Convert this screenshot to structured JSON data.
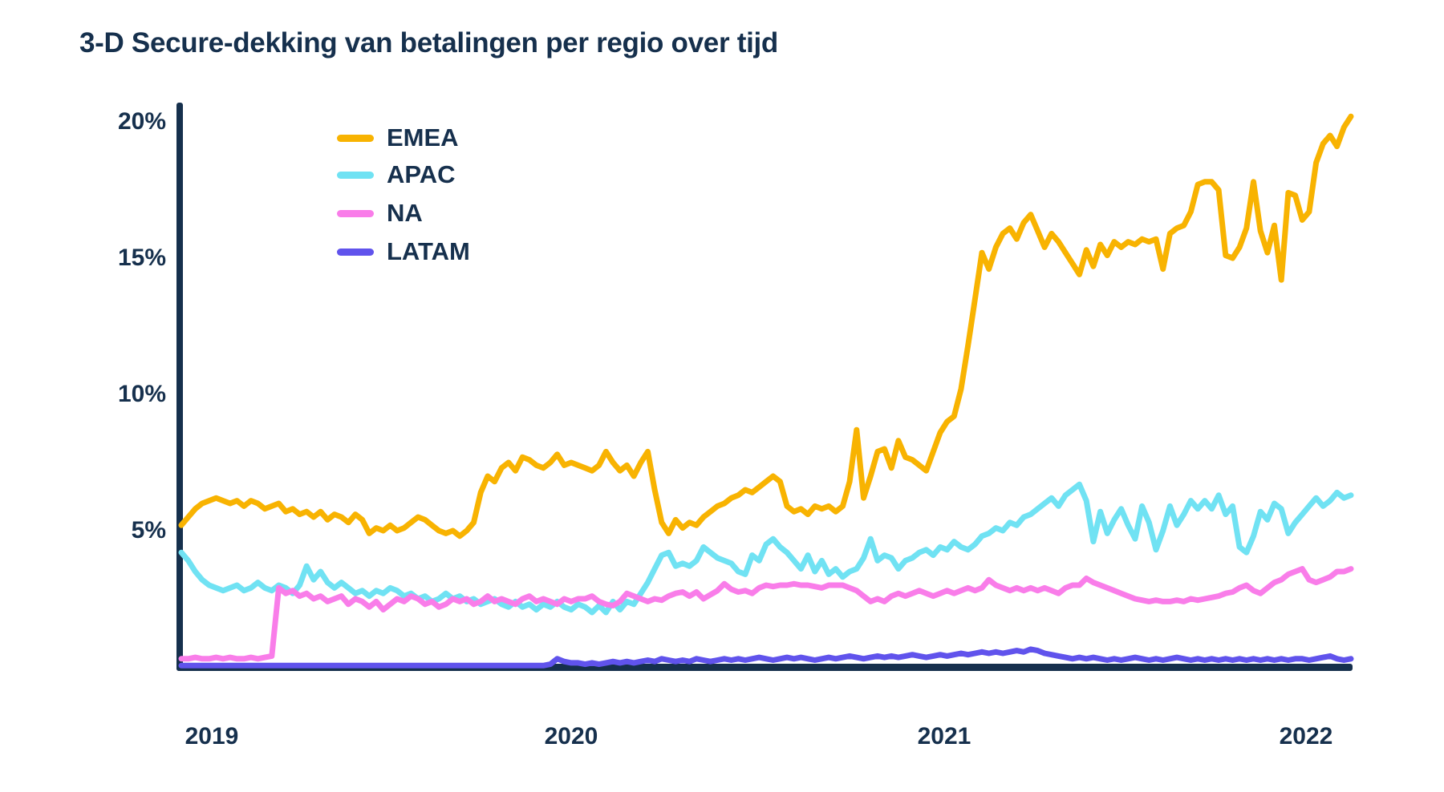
{
  "title": "3-D Secure-dekking van betalingen per regio over tijd",
  "colors": {
    "background": "#FFFFFF",
    "text": "#16304D",
    "axis": "#16304D",
    "emea": "#F8B301",
    "apac": "#70E2F3",
    "na": "#F97DE9",
    "latam": "#6053EC"
  },
  "chart_data": {
    "type": "line",
    "title": "3-D Secure-dekking van betalingen per regio over tijd",
    "xlabel": "",
    "ylabel": "",
    "unit": "%",
    "sampling": "weekly, ~Nov 2018 t/m ~Feb 2022",
    "grid": false,
    "legend_position": "top-left inside plot",
    "x_axis": {
      "tick_labels": [
        "2019",
        "2020",
        "2021",
        "2022"
      ]
    },
    "y_axis": {
      "tick_labels": [
        "20%",
        "15%",
        "10%",
        "5%"
      ],
      "tick_values": [
        20,
        15,
        10,
        5
      ],
      "ylim": [
        0,
        20.5
      ]
    },
    "series": [
      {
        "name": "EMEA",
        "color": "#F8B301",
        "values": [
          5.2,
          5.5,
          5.8,
          6.0,
          6.1,
          6.2,
          6.1,
          6.0,
          6.1,
          5.9,
          6.1,
          6.0,
          5.8,
          5.9,
          6.0,
          5.7,
          5.8,
          5.6,
          5.7,
          5.5,
          5.7,
          5.4,
          5.6,
          5.5,
          5.3,
          5.6,
          5.4,
          4.9,
          5.1,
          5.0,
          5.2,
          5.0,
          5.1,
          5.3,
          5.5,
          5.4,
          5.2,
          5.0,
          4.9,
          5.0,
          4.8,
          5.0,
          5.3,
          6.4,
          7.0,
          6.8,
          7.3,
          7.5,
          7.2,
          7.7,
          7.6,
          7.4,
          7.3,
          7.5,
          7.8,
          7.4,
          7.5,
          7.4,
          7.3,
          7.2,
          7.4,
          7.9,
          7.5,
          7.2,
          7.4,
          7.0,
          7.5,
          7.9,
          6.5,
          5.3,
          4.9,
          5.4,
          5.1,
          5.3,
          5.2,
          5.5,
          5.7,
          5.9,
          6.0,
          6.2,
          6.3,
          6.5,
          6.4,
          6.6,
          6.8,
          7.0,
          6.8,
          5.9,
          5.7,
          5.8,
          5.6,
          5.9,
          5.8,
          5.9,
          5.7,
          5.9,
          6.8,
          8.7,
          6.2,
          7.0,
          7.9,
          8.0,
          7.3,
          8.3,
          7.7,
          7.6,
          7.4,
          7.2,
          7.9,
          8.6,
          9.0,
          9.2,
          10.2,
          11.8,
          13.5,
          15.2,
          14.6,
          15.4,
          15.9,
          16.1,
          15.7,
          16.3,
          16.6,
          16.0,
          15.4,
          15.9,
          15.6,
          15.2,
          14.8,
          14.4,
          15.3,
          14.7,
          15.5,
          15.1,
          15.6,
          15.4,
          15.6,
          15.5,
          15.7,
          15.6,
          15.7,
          14.6,
          15.9,
          16.1,
          16.2,
          16.7,
          17.7,
          17.8,
          17.8,
          17.5,
          15.1,
          15.0,
          15.4,
          16.1,
          17.8,
          16.0,
          15.2,
          16.2,
          14.2,
          17.4,
          17.3,
          16.4,
          16.7,
          18.5,
          19.2,
          19.5,
          19.1,
          19.8,
          20.2
        ]
      },
      {
        "name": "APAC",
        "color": "#70E2F3",
        "values": [
          4.2,
          3.9,
          3.5,
          3.2,
          3.0,
          2.9,
          2.8,
          2.9,
          3.0,
          2.8,
          2.9,
          3.1,
          2.9,
          2.8,
          3.0,
          2.9,
          2.7,
          3.0,
          3.7,
          3.2,
          3.5,
          3.1,
          2.9,
          3.1,
          2.9,
          2.7,
          2.8,
          2.6,
          2.8,
          2.7,
          2.9,
          2.8,
          2.6,
          2.7,
          2.5,
          2.6,
          2.4,
          2.5,
          2.7,
          2.5,
          2.6,
          2.4,
          2.5,
          2.3,
          2.4,
          2.5,
          2.3,
          2.2,
          2.4,
          2.2,
          2.3,
          2.1,
          2.3,
          2.2,
          2.4,
          2.2,
          2.1,
          2.3,
          2.2,
          2.0,
          2.25,
          2.0,
          2.4,
          2.1,
          2.4,
          2.3,
          2.7,
          3.1,
          3.6,
          4.1,
          4.2,
          3.7,
          3.8,
          3.7,
          3.9,
          4.4,
          4.2,
          4.0,
          3.9,
          3.8,
          3.5,
          3.4,
          4.1,
          3.9,
          4.5,
          4.7,
          4.4,
          4.2,
          3.9,
          3.6,
          4.1,
          3.5,
          3.9,
          3.4,
          3.6,
          3.3,
          3.5,
          3.6,
          4.0,
          4.7,
          3.9,
          4.1,
          4.0,
          3.6,
          3.9,
          4.0,
          4.2,
          4.3,
          4.1,
          4.4,
          4.3,
          4.6,
          4.4,
          4.3,
          4.5,
          4.8,
          4.9,
          5.1,
          5.0,
          5.3,
          5.2,
          5.5,
          5.6,
          5.8,
          6.0,
          6.2,
          5.9,
          6.3,
          6.5,
          6.7,
          6.1,
          4.6,
          5.7,
          4.9,
          5.4,
          5.8,
          5.2,
          4.7,
          5.9,
          5.3,
          4.3,
          5.0,
          5.9,
          5.2,
          5.6,
          6.1,
          5.8,
          6.1,
          5.8,
          6.3,
          5.6,
          5.9,
          4.4,
          4.2,
          4.8,
          5.7,
          5.4,
          6.0,
          5.8,
          4.9,
          5.3,
          5.6,
          5.9,
          6.2,
          5.9,
          6.1,
          6.4,
          6.2,
          6.3
        ]
      },
      {
        "name": "NA",
        "color": "#F97DE9",
        "values": [
          0.3,
          0.3,
          0.35,
          0.3,
          0.3,
          0.35,
          0.3,
          0.35,
          0.3,
          0.3,
          0.35,
          0.3,
          0.35,
          0.4,
          2.9,
          2.7,
          2.8,
          2.6,
          2.7,
          2.5,
          2.6,
          2.4,
          2.5,
          2.6,
          2.3,
          2.5,
          2.4,
          2.2,
          2.4,
          2.1,
          2.3,
          2.5,
          2.4,
          2.6,
          2.5,
          2.3,
          2.4,
          2.2,
          2.3,
          2.5,
          2.4,
          2.5,
          2.3,
          2.4,
          2.6,
          2.4,
          2.5,
          2.4,
          2.3,
          2.5,
          2.6,
          2.4,
          2.5,
          2.4,
          2.3,
          2.5,
          2.4,
          2.5,
          2.5,
          2.6,
          2.4,
          2.3,
          2.25,
          2.4,
          2.7,
          2.6,
          2.5,
          2.4,
          2.5,
          2.45,
          2.6,
          2.7,
          2.75,
          2.6,
          2.75,
          2.5,
          2.65,
          2.8,
          3.05,
          2.85,
          2.75,
          2.8,
          2.7,
          2.9,
          3.0,
          2.95,
          3.0,
          3.0,
          3.05,
          3.0,
          3.0,
          2.95,
          2.9,
          3.0,
          3.0,
          3.0,
          2.9,
          2.8,
          2.6,
          2.4,
          2.5,
          2.4,
          2.6,
          2.7,
          2.6,
          2.7,
          2.8,
          2.7,
          2.6,
          2.7,
          2.8,
          2.7,
          2.8,
          2.9,
          2.8,
          2.9,
          3.2,
          3.0,
          2.9,
          2.8,
          2.9,
          2.8,
          2.9,
          2.8,
          2.9,
          2.8,
          2.7,
          2.9,
          3.0,
          3.0,
          3.25,
          3.1,
          3.0,
          2.9,
          2.8,
          2.7,
          2.6,
          2.5,
          2.45,
          2.4,
          2.45,
          2.4,
          2.4,
          2.45,
          2.4,
          2.5,
          2.45,
          2.5,
          2.55,
          2.6,
          2.7,
          2.75,
          2.9,
          3.0,
          2.8,
          2.7,
          2.9,
          3.1,
          3.2,
          3.4,
          3.5,
          3.6,
          3.2,
          3.1,
          3.2,
          3.3,
          3.5,
          3.5,
          3.6
        ]
      },
      {
        "name": "LATAM",
        "color": "#6053EC",
        "values": [
          0.05,
          0.05,
          0.05,
          0.05,
          0.05,
          0.05,
          0.05,
          0.05,
          0.05,
          0.05,
          0.05,
          0.05,
          0.05,
          0.05,
          0.05,
          0.05,
          0.05,
          0.05,
          0.05,
          0.05,
          0.05,
          0.05,
          0.05,
          0.05,
          0.05,
          0.05,
          0.05,
          0.05,
          0.05,
          0.05,
          0.05,
          0.05,
          0.05,
          0.05,
          0.05,
          0.05,
          0.05,
          0.05,
          0.05,
          0.05,
          0.05,
          0.05,
          0.05,
          0.05,
          0.05,
          0.05,
          0.05,
          0.05,
          0.05,
          0.05,
          0.05,
          0.05,
          0.05,
          0.1,
          0.3,
          0.2,
          0.15,
          0.15,
          0.1,
          0.15,
          0.1,
          0.15,
          0.2,
          0.15,
          0.2,
          0.15,
          0.2,
          0.25,
          0.2,
          0.3,
          0.25,
          0.2,
          0.25,
          0.2,
          0.3,
          0.25,
          0.2,
          0.25,
          0.3,
          0.25,
          0.3,
          0.25,
          0.3,
          0.35,
          0.3,
          0.25,
          0.3,
          0.35,
          0.3,
          0.35,
          0.3,
          0.25,
          0.3,
          0.35,
          0.3,
          0.35,
          0.4,
          0.35,
          0.3,
          0.35,
          0.4,
          0.35,
          0.4,
          0.35,
          0.4,
          0.45,
          0.4,
          0.35,
          0.4,
          0.45,
          0.4,
          0.45,
          0.5,
          0.45,
          0.5,
          0.55,
          0.5,
          0.55,
          0.5,
          0.55,
          0.6,
          0.55,
          0.65,
          0.6,
          0.5,
          0.45,
          0.4,
          0.35,
          0.3,
          0.35,
          0.3,
          0.35,
          0.3,
          0.25,
          0.3,
          0.25,
          0.3,
          0.35,
          0.3,
          0.25,
          0.3,
          0.25,
          0.3,
          0.35,
          0.3,
          0.25,
          0.3,
          0.25,
          0.3,
          0.25,
          0.3,
          0.25,
          0.3,
          0.25,
          0.3,
          0.25,
          0.3,
          0.25,
          0.3,
          0.25,
          0.3,
          0.3,
          0.25,
          0.3,
          0.35,
          0.4,
          0.3,
          0.25,
          0.3
        ]
      }
    ]
  }
}
